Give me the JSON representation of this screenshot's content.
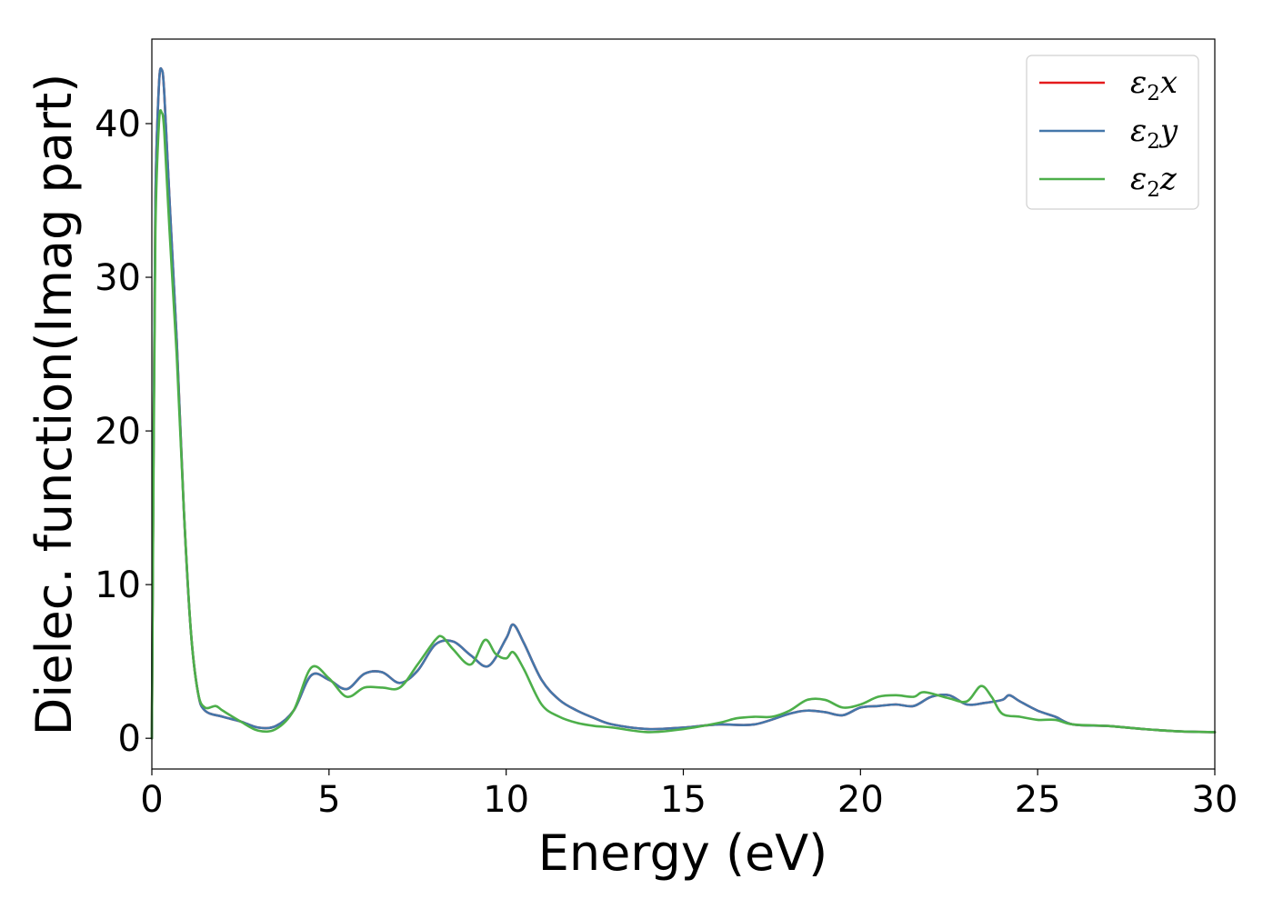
{
  "chart_data": {
    "type": "line",
    "title": "",
    "xlabel": "Energy (eV)",
    "ylabel": "Dielec. function(Imag part)",
    "xlim": [
      0,
      30
    ],
    "ylim": [
      -2,
      45.5
    ],
    "xticks": [
      0,
      5,
      10,
      15,
      20,
      25,
      30
    ],
    "yticks": [
      0,
      10,
      20,
      30,
      40
    ],
    "grid": false,
    "legend": "top-right",
    "series": [
      {
        "name": "ε2x",
        "name_base": "ε",
        "name_sub": "2",
        "name_tail": "x",
        "color": "#e41a1c",
        "x": [
          0,
          0.05,
          0.1,
          0.2,
          0.28,
          0.35,
          0.5,
          0.7,
          0.9,
          1.1,
          1.3,
          1.5,
          2,
          2.5,
          3,
          3.5,
          4,
          4.5,
          5,
          5.5,
          6,
          6.5,
          7,
          7.5,
          8,
          8.5,
          9,
          9.5,
          10,
          10.2,
          10.5,
          11,
          11.5,
          12,
          12.5,
          13,
          14,
          15,
          16,
          17,
          18,
          18.5,
          19,
          19.5,
          20,
          20.5,
          21,
          21.5,
          22,
          22.5,
          23,
          23.5,
          24,
          24.2,
          24.5,
          25,
          25.5,
          26,
          27,
          28,
          29,
          30
        ],
        "values": [
          0,
          20,
          35,
          42.5,
          43.5,
          42,
          35,
          26,
          15,
          7,
          3,
          1.8,
          1.4,
          1.1,
          0.7,
          0.8,
          1.8,
          4.1,
          3.8,
          3.2,
          4.2,
          4.3,
          3.6,
          4.4,
          6.1,
          6.3,
          5.4,
          4.7,
          6.5,
          7.4,
          6.2,
          3.8,
          2.5,
          1.8,
          1.3,
          0.9,
          0.6,
          0.7,
          0.9,
          0.9,
          1.6,
          1.8,
          1.7,
          1.5,
          2.0,
          2.1,
          2.2,
          2.1,
          2.7,
          2.8,
          2.2,
          2.3,
          2.5,
          2.8,
          2.4,
          1.8,
          1.4,
          0.9,
          0.8,
          0.6,
          0.45,
          0.4
        ]
      },
      {
        "name": "ε2y",
        "name_base": "ε",
        "name_sub": "2",
        "name_tail": "y",
        "color": "#4477aa",
        "x": [
          0,
          0.05,
          0.1,
          0.2,
          0.28,
          0.35,
          0.5,
          0.7,
          0.9,
          1.1,
          1.3,
          1.5,
          2,
          2.5,
          3,
          3.5,
          4,
          4.5,
          5,
          5.5,
          6,
          6.5,
          7,
          7.5,
          8,
          8.5,
          9,
          9.5,
          10,
          10.2,
          10.5,
          11,
          11.5,
          12,
          12.5,
          13,
          14,
          15,
          16,
          17,
          18,
          18.5,
          19,
          19.5,
          20,
          20.5,
          21,
          21.5,
          22,
          22.5,
          23,
          23.5,
          24,
          24.2,
          24.5,
          25,
          25.5,
          26,
          27,
          28,
          29,
          30
        ],
        "values": [
          0,
          20,
          35,
          42.5,
          43.5,
          42,
          35,
          26,
          15,
          7,
          3,
          1.8,
          1.4,
          1.1,
          0.7,
          0.8,
          1.8,
          4.1,
          3.8,
          3.2,
          4.2,
          4.3,
          3.6,
          4.4,
          6.1,
          6.3,
          5.4,
          4.7,
          6.5,
          7.4,
          6.2,
          3.8,
          2.5,
          1.8,
          1.3,
          0.9,
          0.6,
          0.7,
          0.9,
          0.9,
          1.6,
          1.8,
          1.7,
          1.5,
          2.0,
          2.1,
          2.2,
          2.1,
          2.7,
          2.8,
          2.2,
          2.3,
          2.5,
          2.8,
          2.4,
          1.8,
          1.4,
          0.9,
          0.8,
          0.6,
          0.45,
          0.4
        ]
      },
      {
        "name": "ε2z",
        "name_base": "ε",
        "name_sub": "2",
        "name_tail": "z",
        "color": "#4daf4a",
        "x": [
          0,
          0.05,
          0.1,
          0.2,
          0.28,
          0.35,
          0.5,
          0.7,
          0.9,
          1.1,
          1.3,
          1.5,
          1.8,
          2,
          2.5,
          3,
          3.5,
          4,
          4.5,
          5,
          5.5,
          6,
          6.5,
          7,
          7.5,
          8,
          8.2,
          8.5,
          9,
          9.4,
          9.7,
          10,
          10.2,
          10.5,
          11,
          11.5,
          12,
          12.5,
          13,
          14,
          15,
          16,
          16.5,
          17,
          17.5,
          18,
          18.5,
          19,
          19.5,
          20,
          20.5,
          21,
          21.5,
          21.8,
          22.5,
          23,
          23.4,
          23.7,
          24,
          24.5,
          25,
          25.5,
          26,
          27,
          28,
          29,
          30
        ],
        "values": [
          0,
          18,
          33,
          40,
          40.7,
          39.5,
          33,
          25,
          15,
          7,
          3,
          2.0,
          2.1,
          1.8,
          1.1,
          0.5,
          0.6,
          1.8,
          4.6,
          3.9,
          2.7,
          3.3,
          3.3,
          3.3,
          4.8,
          6.4,
          6.6,
          5.8,
          4.8,
          6.4,
          5.5,
          5.2,
          5.6,
          4.5,
          2.2,
          1.4,
          1.0,
          0.8,
          0.7,
          0.4,
          0.6,
          1.0,
          1.3,
          1.4,
          1.4,
          1.8,
          2.5,
          2.5,
          2.0,
          2.2,
          2.7,
          2.8,
          2.7,
          3.0,
          2.6,
          2.4,
          3.4,
          2.7,
          1.6,
          1.4,
          1.2,
          1.2,
          0.9,
          0.8,
          0.6,
          0.45,
          0.4
        ]
      }
    ]
  }
}
